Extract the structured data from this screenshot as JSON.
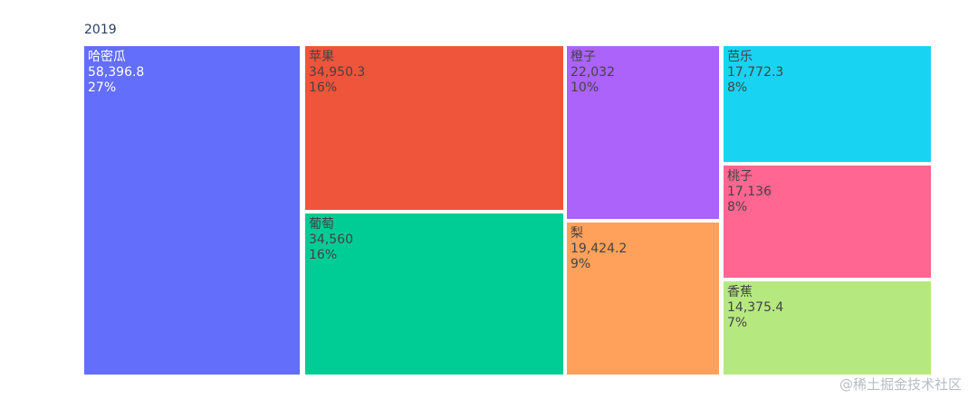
{
  "chart_data": {
    "type": "treemap",
    "title": "",
    "root_label": "2019",
    "items": [
      {
        "label": "哈密瓜",
        "value": 58396.8,
        "value_text": "58,396.8",
        "percent_text": "27%",
        "color": "#636efa",
        "text_color": "#ffffff"
      },
      {
        "label": "苹果",
        "value": 34950.3,
        "value_text": "34,950.3",
        "percent_text": "16%",
        "color": "#ef553b",
        "text_color": "#444444"
      },
      {
        "label": "葡萄",
        "value": 34560,
        "value_text": "34,560",
        "percent_text": "16%",
        "color": "#00cc96",
        "text_color": "#444444"
      },
      {
        "label": "橙子",
        "value": 22032,
        "value_text": "22,032",
        "percent_text": "10%",
        "color": "#ab63fa",
        "text_color": "#444444"
      },
      {
        "label": "梨",
        "value": 19424.2,
        "value_text": "19,424.2",
        "percent_text": "9%",
        "color": "#ffa15a",
        "text_color": "#444444"
      },
      {
        "label": "芭乐",
        "value": 17772.3,
        "value_text": "17,772.3",
        "percent_text": "8%",
        "color": "#19d3f3",
        "text_color": "#444444"
      },
      {
        "label": "桃子",
        "value": 17136,
        "value_text": "17,136",
        "percent_text": "8%",
        "color": "#ff6692",
        "text_color": "#444444"
      },
      {
        "label": "香蕉",
        "value": 14375.4,
        "value_text": "14,375.4",
        "percent_text": "7%",
        "color": "#b6e880",
        "text_color": "#444444"
      }
    ]
  },
  "watermark": "@稀土掘金技术社区"
}
